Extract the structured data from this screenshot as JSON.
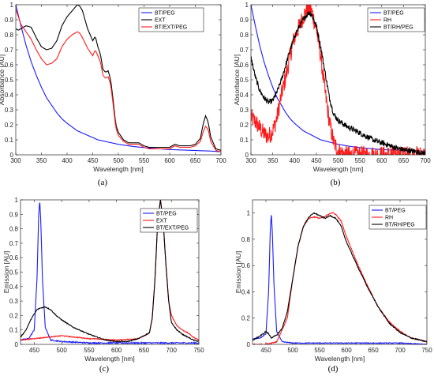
{
  "chart_data": [
    {
      "panel": "a",
      "caption": "(a)",
      "type": "line",
      "xlabel": "Wavelength [nm]",
      "ylabel": "Absorbance [AU]",
      "xlim": [
        300,
        700
      ],
      "ylim": [
        0,
        1
      ],
      "xticks": [
        "300",
        "350",
        "400",
        "450",
        "500",
        "550",
        "600",
        "650",
        "700"
      ],
      "yticks": [
        "0",
        "0.1",
        "0.2",
        "0.3",
        "0.4",
        "0.5",
        "0.6",
        "0.7",
        "0.8",
        "0.9",
        "1"
      ],
      "legend": "top-right",
      "series": [
        {
          "name": "BT/PEG",
          "color": "#1a1aff",
          "noise": 0,
          "x": [
            300,
            310,
            320,
            330,
            340,
            350,
            360,
            370,
            380,
            390,
            400,
            420,
            440,
            460,
            480,
            500,
            530,
            560,
            600,
            640,
            680,
            700
          ],
          "y": [
            1.0,
            0.86,
            0.73,
            0.62,
            0.53,
            0.45,
            0.38,
            0.33,
            0.28,
            0.24,
            0.21,
            0.16,
            0.13,
            0.1,
            0.085,
            0.07,
            0.055,
            0.045,
            0.035,
            0.03,
            0.025,
            0.02
          ]
        },
        {
          "name": "EXT",
          "color": "#000000",
          "noise": 0,
          "x": [
            300,
            305,
            310,
            320,
            330,
            340,
            350,
            360,
            370,
            380,
            390,
            400,
            410,
            420,
            425,
            430,
            440,
            450,
            455,
            460,
            465,
            470,
            475,
            480,
            485,
            490,
            495,
            500,
            510,
            520,
            530,
            540,
            550,
            560,
            580,
            600,
            610,
            620,
            630,
            640,
            650,
            660,
            665,
            670,
            675,
            680,
            690,
            700
          ],
          "y": [
            0.84,
            0.83,
            0.84,
            0.86,
            0.85,
            0.78,
            0.72,
            0.7,
            0.71,
            0.76,
            0.86,
            0.92,
            0.96,
            1.0,
            0.99,
            0.96,
            0.84,
            0.76,
            0.79,
            0.72,
            0.67,
            0.57,
            0.55,
            0.56,
            0.5,
            0.36,
            0.2,
            0.15,
            0.1,
            0.08,
            0.08,
            0.08,
            0.06,
            0.05,
            0.05,
            0.05,
            0.07,
            0.06,
            0.06,
            0.06,
            0.07,
            0.11,
            0.2,
            0.26,
            0.22,
            0.12,
            0.04,
            0.03
          ]
        },
        {
          "name": "BT/EXT/PEG",
          "color": "#ff1a1a",
          "noise": 0,
          "x": [
            300,
            305,
            310,
            320,
            330,
            340,
            350,
            360,
            370,
            380,
            390,
            400,
            410,
            420,
            425,
            430,
            440,
            450,
            455,
            460,
            465,
            470,
            475,
            480,
            485,
            490,
            495,
            500,
            510,
            520,
            530,
            540,
            550,
            560,
            580,
            600,
            610,
            620,
            630,
            640,
            650,
            660,
            665,
            670,
            675,
            680,
            690,
            700
          ],
          "y": [
            0.97,
            0.92,
            0.87,
            0.82,
            0.77,
            0.7,
            0.64,
            0.6,
            0.61,
            0.64,
            0.72,
            0.77,
            0.8,
            0.82,
            0.81,
            0.78,
            0.71,
            0.66,
            0.7,
            0.66,
            0.62,
            0.53,
            0.51,
            0.52,
            0.47,
            0.33,
            0.18,
            0.13,
            0.09,
            0.07,
            0.07,
            0.07,
            0.05,
            0.04,
            0.04,
            0.04,
            0.06,
            0.05,
            0.05,
            0.05,
            0.06,
            0.09,
            0.15,
            0.19,
            0.17,
            0.09,
            0.03,
            0.02
          ]
        }
      ]
    },
    {
      "panel": "b",
      "caption": "(b)",
      "type": "line",
      "xlabel": "Wavelength [nm]",
      "ylabel": "Absorbance [AU]",
      "xlim": [
        300,
        700
      ],
      "ylim": [
        0,
        1
      ],
      "xticks": [
        "300",
        "350",
        "400",
        "450",
        "500",
        "550",
        "600",
        "650",
        "700"
      ],
      "yticks": [
        "0",
        "0.1",
        "0.2",
        "0.3",
        "0.4",
        "0.5",
        "0.6",
        "0.7",
        "0.8",
        "0.9",
        "1"
      ],
      "legend": "top-right",
      "series": [
        {
          "name": "BT/PEG",
          "color": "#1a1aff",
          "noise": 0,
          "x": [
            300,
            310,
            320,
            330,
            340,
            350,
            360,
            370,
            380,
            390,
            400,
            420,
            440,
            460,
            480,
            500,
            530,
            560,
            600,
            640,
            680,
            700
          ],
          "y": [
            1.0,
            0.86,
            0.73,
            0.62,
            0.53,
            0.45,
            0.38,
            0.33,
            0.28,
            0.24,
            0.21,
            0.16,
            0.13,
            0.1,
            0.085,
            0.07,
            0.055,
            0.045,
            0.035,
            0.03,
            0.025,
            0.02
          ]
        },
        {
          "name": "RH",
          "color": "#ff1a1a",
          "noise": 0.06,
          "x": [
            300,
            310,
            320,
            330,
            340,
            350,
            360,
            370,
            380,
            390,
            400,
            410,
            420,
            430,
            435,
            440,
            450,
            460,
            470,
            480,
            490,
            500,
            510,
            520,
            550,
            600,
            650,
            700
          ],
          "y": [
            0.25,
            0.22,
            0.18,
            0.14,
            0.12,
            0.16,
            0.25,
            0.4,
            0.52,
            0.66,
            0.78,
            0.85,
            0.92,
            0.97,
            0.98,
            0.95,
            0.84,
            0.66,
            0.42,
            0.22,
            0.08,
            0.03,
            0.01,
            0.0,
            0.0,
            0.0,
            0.0,
            0.0
          ]
        },
        {
          "name": "BT/RH/PEG",
          "color": "#000000",
          "noise": 0.018,
          "x": [
            300,
            310,
            320,
            330,
            340,
            350,
            360,
            370,
            380,
            390,
            400,
            410,
            420,
            430,
            435,
            440,
            450,
            460,
            470,
            480,
            490,
            500,
            510,
            520,
            540,
            560,
            580,
            600,
            620,
            640,
            660,
            680,
            700
          ],
          "y": [
            0.65,
            0.52,
            0.43,
            0.38,
            0.35,
            0.36,
            0.42,
            0.5,
            0.6,
            0.7,
            0.79,
            0.85,
            0.9,
            0.94,
            0.95,
            0.93,
            0.86,
            0.72,
            0.55,
            0.38,
            0.27,
            0.23,
            0.21,
            0.19,
            0.16,
            0.13,
            0.1,
            0.08,
            0.06,
            0.04,
            0.03,
            0.02,
            0.01
          ]
        }
      ]
    },
    {
      "panel": "c",
      "caption": "(c)",
      "type": "line",
      "xlabel": "Wavelength [nm]",
      "ylabel": "Emission [AU]",
      "xlim": [
        425,
        750
      ],
      "ylim": [
        0,
        1
      ],
      "xticks": [
        "450",
        "500",
        "550",
        "600",
        "650",
        "700",
        "750"
      ],
      "yticks": [
        "0",
        "0.1",
        "0.2",
        "0.3",
        "0.4",
        "0.5",
        "0.6",
        "0.7",
        "0.8",
        "0.9",
        "1"
      ],
      "legend": "top-right",
      "series": [
        {
          "name": "BT/PEG",
          "color": "#1a1aff",
          "noise": 0.004,
          "x": [
            425,
            440,
            450,
            455,
            458,
            460,
            462,
            465,
            470,
            480,
            500,
            550,
            600,
            650,
            700,
            750
          ],
          "y": [
            0.03,
            0.04,
            0.1,
            0.45,
            0.88,
            1.0,
            0.85,
            0.45,
            0.12,
            0.03,
            0.02,
            0.01,
            0.01,
            0.01,
            0.01,
            0.01
          ]
        },
        {
          "name": "EXT",
          "color": "#ff1a1a",
          "noise": 0.003,
          "x": [
            425,
            450,
            500,
            550,
            600,
            640,
            660,
            665,
            670,
            675,
            680,
            685,
            690,
            695,
            700,
            710,
            720,
            730,
            740,
            750
          ],
          "y": [
            0.03,
            0.04,
            0.06,
            0.04,
            0.03,
            0.04,
            0.08,
            0.18,
            0.45,
            0.85,
            1.0,
            0.85,
            0.55,
            0.3,
            0.2,
            0.13,
            0.1,
            0.08,
            0.05,
            0.03
          ]
        },
        {
          "name": "BT/EXT/PEG",
          "color": "#000000",
          "noise": 0.003,
          "x": [
            425,
            435,
            445,
            455,
            460,
            470,
            480,
            490,
            500,
            520,
            550,
            580,
            600,
            620,
            640,
            660,
            665,
            670,
            675,
            680,
            685,
            690,
            695,
            700,
            710,
            720,
            730,
            740,
            750
          ],
          "y": [
            0.05,
            0.1,
            0.18,
            0.24,
            0.25,
            0.26,
            0.24,
            0.2,
            0.17,
            0.12,
            0.07,
            0.03,
            0.02,
            0.02,
            0.04,
            0.08,
            0.18,
            0.45,
            0.85,
            1.0,
            0.85,
            0.55,
            0.3,
            0.15,
            0.1,
            0.07,
            0.05,
            0.03,
            0.02
          ]
        }
      ]
    },
    {
      "panel": "d",
      "caption": "(d)",
      "type": "line",
      "xlabel": "Wavelength [nm]",
      "ylabel": "Emission [AU]",
      "xlim": [
        425,
        750
      ],
      "ylim": [
        0,
        1.1
      ],
      "xticks": [
        "450",
        "500",
        "550",
        "600",
        "650",
        "700",
        "750"
      ],
      "yticks": [
        "0",
        "0.2",
        "0.4",
        "0.6",
        "0.8",
        "1"
      ],
      "legend": "top-right",
      "series": [
        {
          "name": "BT/PEG",
          "color": "#1a1aff",
          "noise": 0.003,
          "x": [
            425,
            440,
            450,
            455,
            458,
            460,
            462,
            465,
            470,
            480,
            500,
            550,
            600,
            650,
            700,
            750
          ],
          "y": [
            0.04,
            0.05,
            0.08,
            0.4,
            0.85,
            1.0,
            0.85,
            0.45,
            0.1,
            0.02,
            0.01,
            0.01,
            0.01,
            0.01,
            0.01,
            0.0
          ]
        },
        {
          "name": "RH",
          "color": "#ff1a1a",
          "noise": 0.004,
          "x": [
            425,
            450,
            470,
            490,
            500,
            510,
            520,
            530,
            540,
            550,
            560,
            570,
            575,
            580,
            590,
            600,
            620,
            640,
            660,
            680,
            700,
            720,
            740,
            750
          ],
          "y": [
            0.0,
            0.0,
            0.02,
            0.2,
            0.5,
            0.75,
            0.9,
            0.96,
            0.97,
            0.96,
            0.97,
            1.0,
            1.0,
            0.99,
            0.94,
            0.82,
            0.62,
            0.44,
            0.28,
            0.17,
            0.1,
            0.05,
            0.03,
            0.02
          ]
        },
        {
          "name": "BT/RH/PEG",
          "color": "#000000",
          "noise": 0.004,
          "x": [
            425,
            445,
            450,
            455,
            460,
            465,
            470,
            480,
            490,
            500,
            510,
            520,
            530,
            540,
            550,
            560,
            570,
            575,
            580,
            590,
            600,
            620,
            640,
            660,
            680,
            700,
            720,
            740,
            750
          ],
          "y": [
            0.03,
            0.08,
            0.1,
            0.08,
            0.05,
            0.06,
            0.07,
            0.12,
            0.25,
            0.5,
            0.75,
            0.9,
            0.97,
            1.0,
            0.98,
            0.96,
            0.98,
            0.97,
            0.96,
            0.9,
            0.78,
            0.6,
            0.43,
            0.28,
            0.16,
            0.09,
            0.05,
            0.03,
            0.02
          ]
        }
      ]
    }
  ]
}
